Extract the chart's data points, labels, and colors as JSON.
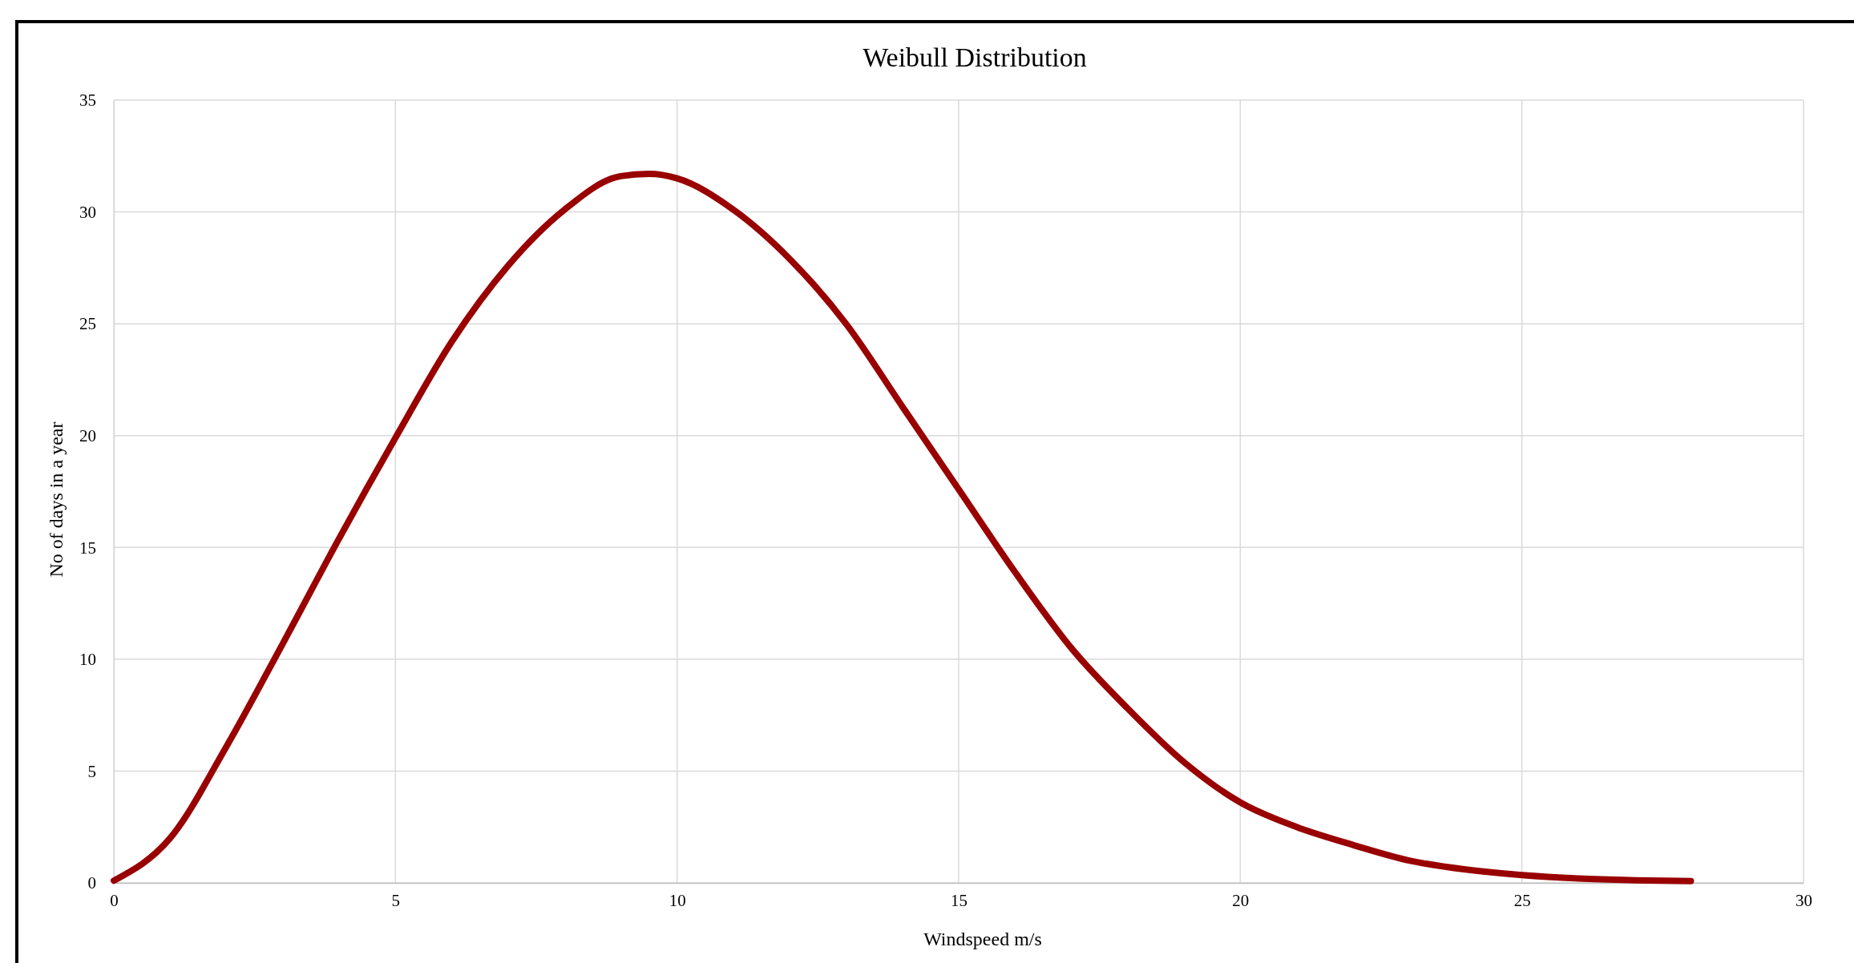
{
  "chart_data": {
    "type": "line",
    "title": "Weibull Distribution",
    "xlabel": "Windspeed m/s",
    "ylabel": "No of days in a year",
    "x": [
      0,
      1,
      2,
      3,
      4,
      5,
      6,
      7,
      8,
      9,
      9.5,
      10,
      11,
      12,
      13,
      14,
      15,
      16,
      17,
      18,
      19,
      20,
      21,
      22,
      23,
      24,
      25,
      26,
      27,
      28
    ],
    "series": [
      {
        "color": "#990000",
        "values": [
          0.1,
          2,
          6.1,
          10.7,
          15.4,
          19.9,
          24.2,
          27.6,
          30.1,
          31.6,
          31.7,
          31.5,
          30.1,
          27.9,
          25,
          21.3,
          17.6,
          13.9,
          10.5,
          7.8,
          5.4,
          3.6,
          2.5,
          1.7,
          1,
          0.6,
          0.35,
          0.2,
          0.12,
          0.08
        ]
      }
    ],
    "xlim": [
      0,
      30
    ],
    "xticks": [
      0,
      5,
      10,
      15,
      20,
      25,
      30
    ],
    "ylim": [
      0,
      35
    ],
    "yticks": [
      0,
      5,
      10,
      15,
      20,
      25,
      30,
      35
    ],
    "grid": true,
    "marker": "none",
    "line_style": "solid"
  }
}
